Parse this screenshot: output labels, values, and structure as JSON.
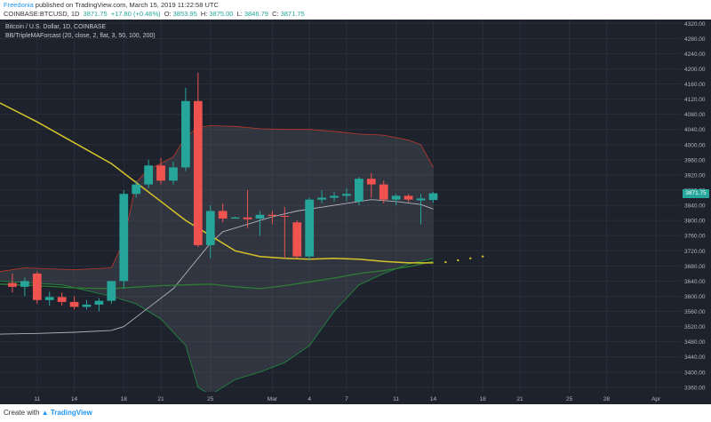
{
  "header": {
    "author": "Freedonia",
    "published_text": "published on TradingView.com, March 15, 2019 11:22:58 UTC",
    "symbol": "COINBASE:BTCUSD, 1D",
    "last": "3871.75",
    "change": "+17.80 (+0.46%)",
    "open_label": "O:",
    "open": "3853.95",
    "high_label": "H:",
    "high": "3875.00",
    "low_label": "L:",
    "low": "3846.79",
    "close_label": "C:",
    "close": "3871.75"
  },
  "legend": {
    "title": "Bitcoin / U.S. Dollar, 1D, COINBASE",
    "indicator": "BB/TripleMAForcast (20, close, 2, flat, 3, 50, 100, 200)"
  },
  "price_badge": "3871.75",
  "footer": {
    "created_with": "Create with",
    "brand": "TradingView"
  },
  "colors": {
    "up": "#26a69a",
    "down": "#ef5350",
    "background": "#1e222d",
    "ma_slow": "#d6c42a",
    "ma_mid": "#2e7d32",
    "basis": "#b0b3ba"
  },
  "chart_data": {
    "type": "candlestick",
    "y_ticks": [
      3360,
      3400,
      3440,
      3480,
      3520,
      3560,
      3600,
      3640,
      3680,
      3720,
      3760,
      3800,
      3840,
      3880,
      3920,
      3960,
      4000,
      4040,
      4080,
      4120,
      4160,
      4200,
      4240,
      4280,
      4320
    ],
    "ylim": [
      3348,
      4330
    ],
    "x_ticks": [
      "11",
      "14",
      "18",
      "21",
      "25",
      "Mar",
      "4",
      "7",
      "11",
      "14",
      "18",
      "21",
      "25",
      "28",
      "Apr"
    ],
    "x_tick_days": [
      -18,
      -15,
      -11,
      -8,
      -4,
      1,
      4,
      7,
      11,
      14,
      18,
      21,
      25,
      28,
      32
    ],
    "x_range_days": [
      -21,
      34
    ],
    "candles": [
      {
        "day": -20,
        "o": 3635,
        "h": 3660,
        "l": 3610,
        "c": 3625
      },
      {
        "day": -19,
        "o": 3625,
        "h": 3650,
        "l": 3600,
        "c": 3640
      },
      {
        "day": -18,
        "o": 3660,
        "h": 3665,
        "l": 3580,
        "c": 3590
      },
      {
        "day": -17,
        "o": 3590,
        "h": 3612,
        "l": 3575,
        "c": 3598
      },
      {
        "day": -16,
        "o": 3598,
        "h": 3610,
        "l": 3575,
        "c": 3585
      },
      {
        "day": -15,
        "o": 3585,
        "h": 3600,
        "l": 3565,
        "c": 3572
      },
      {
        "day": -14,
        "o": 3572,
        "h": 3590,
        "l": 3565,
        "c": 3578
      },
      {
        "day": -13,
        "o": 3578,
        "h": 3595,
        "l": 3560,
        "c": 3588
      },
      {
        "day": -12,
        "o": 3588,
        "h": 3640,
        "l": 3580,
        "c": 3640
      },
      {
        "day": -11,
        "o": 3640,
        "h": 3880,
        "l": 3620,
        "c": 3870
      },
      {
        "day": -10,
        "o": 3870,
        "h": 3905,
        "l": 3860,
        "c": 3895
      },
      {
        "day": -9,
        "o": 3895,
        "h": 3960,
        "l": 3885,
        "c": 3945
      },
      {
        "day": -8,
        "o": 3945,
        "h": 3965,
        "l": 3895,
        "c": 3905
      },
      {
        "day": -7,
        "o": 3905,
        "h": 3955,
        "l": 3895,
        "c": 3940
      },
      {
        "day": -6,
        "o": 3940,
        "h": 4150,
        "l": 3930,
        "c": 4115
      },
      {
        "day": -5,
        "o": 4115,
        "h": 4190,
        "l": 3730,
        "c": 3735
      },
      {
        "day": -4,
        "o": 3735,
        "h": 3840,
        "l": 3700,
        "c": 3825
      },
      {
        "day": -3,
        "o": 3825,
        "h": 3845,
        "l": 3795,
        "c": 3805
      },
      {
        "day": -2,
        "o": 3805,
        "h": 3810,
        "l": 3805,
        "c": 3808
      },
      {
        "day": -1,
        "o": 3808,
        "h": 3880,
        "l": 3780,
        "c": 3803
      },
      {
        "day": 0,
        "o": 3805,
        "h": 3825,
        "l": 3760,
        "c": 3815
      },
      {
        "day": 1,
        "o": 3815,
        "h": 3825,
        "l": 3790,
        "c": 3812
      },
      {
        "day": 2,
        "o": 3812,
        "h": 3835,
        "l": 3700,
        "c": 3810
      },
      {
        "day": 3,
        "o": 3795,
        "h": 3800,
        "l": 3700,
        "c": 3705
      },
      {
        "day": 4,
        "o": 3705,
        "h": 3860,
        "l": 3695,
        "c": 3855
      },
      {
        "day": 5,
        "o": 3855,
        "h": 3880,
        "l": 3845,
        "c": 3860
      },
      {
        "day": 6,
        "o": 3860,
        "h": 3875,
        "l": 3850,
        "c": 3865
      },
      {
        "day": 7,
        "o": 3865,
        "h": 3885,
        "l": 3850,
        "c": 3870
      },
      {
        "day": 8,
        "o": 3850,
        "h": 3915,
        "l": 3840,
        "c": 3910
      },
      {
        "day": 9,
        "o": 3910,
        "h": 3925,
        "l": 3860,
        "c": 3895
      },
      {
        "day": 10,
        "o": 3895,
        "h": 3905,
        "l": 3845,
        "c": 3855
      },
      {
        "day": 11,
        "o": 3855,
        "h": 3870,
        "l": 3840,
        "c": 3865
      },
      {
        "day": 12,
        "o": 3865,
        "h": 3870,
        "l": 3848,
        "c": 3855
      },
      {
        "day": 13,
        "o": 3853,
        "h": 3870,
        "l": 3790,
        "c": 3858
      },
      {
        "day": 14,
        "o": 3853.95,
        "h": 3875,
        "l": 3846.79,
        "c": 3871.75
      }
    ],
    "bb_upper": [
      [
        -21,
        3665
      ],
      [
        -19,
        3675
      ],
      [
        -15,
        3670
      ],
      [
        -12,
        3675
      ],
      [
        -11,
        3745
      ],
      [
        -10,
        3900
      ],
      [
        -9,
        3935
      ],
      [
        -8,
        3950
      ],
      [
        -7,
        3968
      ],
      [
        -6,
        4020
      ],
      [
        -5,
        4045
      ],
      [
        -4,
        4050
      ],
      [
        -2,
        4048
      ],
      [
        0,
        4042
      ],
      [
        2,
        4040
      ],
      [
        4,
        4040
      ],
      [
        6,
        4035
      ],
      [
        8,
        4028
      ],
      [
        10,
        4025
      ],
      [
        12,
        4012
      ],
      [
        13,
        4000
      ],
      [
        14,
        3940
      ]
    ],
    "bb_lower": [
      [
        -21,
        3640
      ],
      [
        -16,
        3630
      ],
      [
        -12,
        3600
      ],
      [
        -10,
        3580
      ],
      [
        -8,
        3540
      ],
      [
        -6,
        3470
      ],
      [
        -5,
        3360
      ],
      [
        -4,
        3340
      ],
      [
        -2,
        3380
      ],
      [
        0,
        3400
      ],
      [
        2,
        3425
      ],
      [
        4,
        3470
      ],
      [
        6,
        3560
      ],
      [
        8,
        3630
      ],
      [
        10,
        3660
      ],
      [
        12,
        3685
      ],
      [
        14,
        3700
      ]
    ],
    "bb_basis": [
      [
        -21,
        3500
      ],
      [
        -18,
        3502
      ],
      [
        -15,
        3505
      ],
      [
        -12,
        3510
      ],
      [
        -11,
        3520
      ],
      [
        -9,
        3570
      ],
      [
        -7,
        3620
      ],
      [
        -6,
        3660
      ],
      [
        -5,
        3700
      ],
      [
        -4,
        3740
      ],
      [
        -3,
        3770
      ],
      [
        -1,
        3790
      ],
      [
        1,
        3810
      ],
      [
        3,
        3825
      ],
      [
        5,
        3835
      ],
      [
        7,
        3845
      ],
      [
        9,
        3855
      ],
      [
        11,
        3850
      ],
      [
        13,
        3842
      ],
      [
        14,
        3830
      ]
    ],
    "ma_slow": [
      [
        -21,
        4110
      ],
      [
        -18,
        4060
      ],
      [
        -15,
        4005
      ],
      [
        -12,
        3950
      ],
      [
        -10,
        3900
      ],
      [
        -8,
        3850
      ],
      [
        -6,
        3800
      ],
      [
        -4,
        3760
      ],
      [
        -2,
        3720
      ],
      [
        0,
        3705
      ],
      [
        2,
        3700
      ],
      [
        4,
        3698
      ],
      [
        6,
        3700
      ],
      [
        8,
        3698
      ],
      [
        10,
        3692
      ],
      [
        12,
        3688
      ],
      [
        14,
        3688
      ]
    ],
    "ma_slow_forecast": [
      [
        15,
        3690
      ],
      [
        16,
        3695
      ],
      [
        17,
        3700
      ],
      [
        18,
        3705
      ]
    ],
    "ma_mid": [
      [
        -21,
        3632
      ],
      [
        -18,
        3628
      ],
      [
        -15,
        3622
      ],
      [
        -12,
        3620
      ],
      [
        -10,
        3624
      ],
      [
        -8,
        3628
      ],
      [
        -6,
        3630
      ],
      [
        -4,
        3632
      ],
      [
        -2,
        3625
      ],
      [
        0,
        3620
      ],
      [
        2,
        3628
      ],
      [
        4,
        3638
      ],
      [
        6,
        3648
      ],
      [
        8,
        3660
      ],
      [
        10,
        3668
      ],
      [
        12,
        3678
      ],
      [
        14,
        3692
      ]
    ]
  }
}
